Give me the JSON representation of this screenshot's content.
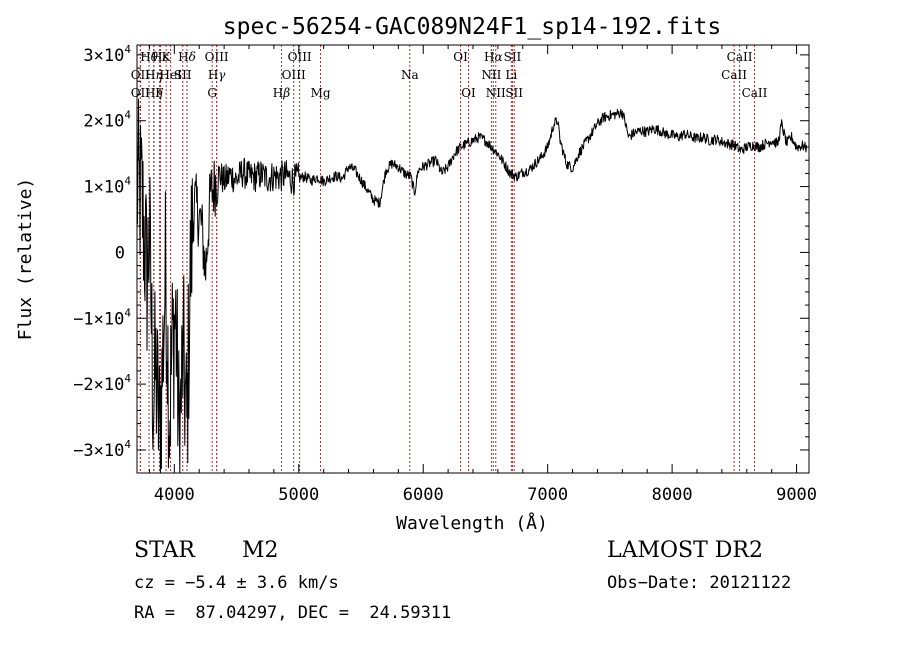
{
  "chart_data": {
    "type": "line",
    "title": "spec-56254-GAC089N24F1_sp14-192.fits",
    "xlabel": "Wavelength (Å)",
    "ylabel": "Flux (relative)",
    "xlim": [
      3700,
      9100
    ],
    "ylim": [
      -33500,
      31500
    ],
    "x_ticks": [
      4000,
      5000,
      6000,
      7000,
      8000,
      9000
    ],
    "x_tick_labels": [
      "4000",
      "5000",
      "6000",
      "7000",
      "8000",
      "9000"
    ],
    "y_ticks": [
      {
        "value": 30000,
        "mantissa": "3",
        "exp": "4"
      },
      {
        "value": 20000,
        "mantissa": "2",
        "exp": "4"
      },
      {
        "value": 10000,
        "mantissa": "1",
        "exp": "4"
      },
      {
        "value": 0,
        "mantissa": "0",
        "exp": ""
      },
      {
        "value": -10000,
        "mantissa": "−1",
        "exp": "4"
      },
      {
        "value": -20000,
        "mantissa": "−2",
        "exp": "4"
      },
      {
        "value": -30000,
        "mantissa": "−3",
        "exp": "4"
      }
    ],
    "line_color": "#000000",
    "line_markers_color": "#b03030",
    "spectrum_anchors": [
      [
        3700,
        10000
      ],
      [
        3740,
        8000
      ],
      [
        3780,
        -4000
      ],
      [
        3800,
        3000
      ],
      [
        3830,
        -22000
      ],
      [
        3850,
        -18000
      ],
      [
        3880,
        -27000
      ],
      [
        3900,
        -20000
      ],
      [
        3930,
        -2000
      ],
      [
        3960,
        -25000
      ],
      [
        3985,
        -14000
      ],
      [
        4010,
        -9000
      ],
      [
        4040,
        -29000
      ],
      [
        4070,
        -15000
      ],
      [
        4100,
        -27000
      ],
      [
        4130,
        -2000
      ],
      [
        4160,
        8000
      ],
      [
        4190,
        6000
      ],
      [
        4220,
        4000
      ],
      [
        4250,
        -3000
      ],
      [
        4290,
        9000
      ],
      [
        4320,
        10000
      ],
      [
        4360,
        12000
      ],
      [
        4400,
        10800
      ],
      [
        4450,
        11800
      ],
      [
        4500,
        11000
      ],
      [
        4550,
        12200
      ],
      [
        4600,
        11500
      ],
      [
        4650,
        11500
      ],
      [
        4700,
        11800
      ],
      [
        4750,
        11300
      ],
      [
        4800,
        11600
      ],
      [
        4850,
        11500
      ],
      [
        4900,
        11700
      ],
      [
        4950,
        11000
      ],
      [
        5000,
        11300
      ],
      [
        5050,
        11500
      ],
      [
        5100,
        10900
      ],
      [
        5150,
        11400
      ],
      [
        5200,
        10800
      ],
      [
        5250,
        11300
      ],
      [
        5300,
        11600
      ],
      [
        5350,
        11200
      ],
      [
        5400,
        13000
      ],
      [
        5450,
        12500
      ],
      [
        5500,
        11000
      ],
      [
        5550,
        9500
      ],
      [
        5600,
        8000
      ],
      [
        5650,
        7500
      ],
      [
        5700,
        12500
      ],
      [
        5750,
        13500
      ],
      [
        5800,
        13000
      ],
      [
        5850,
        12000
      ],
      [
        5900,
        11500
      ],
      [
        5930,
        9000
      ],
      [
        5960,
        12500
      ],
      [
        6000,
        13000
      ],
      [
        6050,
        13500
      ],
      [
        6100,
        14000
      ],
      [
        6150,
        12000
      ],
      [
        6200,
        13000
      ],
      [
        6250,
        15000
      ],
      [
        6300,
        16000
      ],
      [
        6350,
        16500
      ],
      [
        6400,
        17000
      ],
      [
        6450,
        17500
      ],
      [
        6500,
        17000
      ],
      [
        6550,
        16000
      ],
      [
        6600,
        15000
      ],
      [
        6650,
        13500
      ],
      [
        6700,
        12000
      ],
      [
        6750,
        11500
      ],
      [
        6800,
        12200
      ],
      [
        6850,
        12500
      ],
      [
        6900,
        13500
      ],
      [
        6950,
        14500
      ],
      [
        7000,
        16000
      ],
      [
        7050,
        19500
      ],
      [
        7080,
        20000
      ],
      [
        7100,
        17000
      ],
      [
        7150,
        13500
      ],
      [
        7200,
        12800
      ],
      [
        7250,
        15000
      ],
      [
        7300,
        16500
      ],
      [
        7350,
        18000
      ],
      [
        7400,
        19500
      ],
      [
        7450,
        20500
      ],
      [
        7500,
        20800
      ],
      [
        7550,
        21000
      ],
      [
        7600,
        21300
      ],
      [
        7620,
        20000
      ],
      [
        7650,
        17500
      ],
      [
        7700,
        18200
      ],
      [
        7750,
        18500
      ],
      [
        7800,
        18300
      ],
      [
        7850,
        18800
      ],
      [
        7900,
        18500
      ],
      [
        7950,
        18000
      ],
      [
        8000,
        17800
      ],
      [
        8050,
        17500
      ],
      [
        8100,
        18000
      ],
      [
        8150,
        17600
      ],
      [
        8200,
        17300
      ],
      [
        8250,
        17500
      ],
      [
        8300,
        17000
      ],
      [
        8350,
        17200
      ],
      [
        8400,
        16800
      ],
      [
        8450,
        16500
      ],
      [
        8500,
        16300
      ],
      [
        8550,
        15500
      ],
      [
        8600,
        16000
      ],
      [
        8650,
        16300
      ],
      [
        8700,
        16000
      ],
      [
        8750,
        16500
      ],
      [
        8800,
        17000
      ],
      [
        8850,
        16500
      ],
      [
        8880,
        19500
      ],
      [
        8920,
        16500
      ],
      [
        8960,
        17500
      ],
      [
        9000,
        16000
      ],
      [
        9050,
        16200
      ],
      [
        9080,
        15800
      ]
    ],
    "lines": [
      {
        "row": 0,
        "x": 3797,
        "label": "H",
        "greek": "θ"
      },
      {
        "row": 0,
        "x": 3889,
        "label": "H",
        "greek": "ε"
      },
      {
        "row": 0,
        "x": 3934,
        "label": "K"
      },
      {
        "row": 0,
        "x": 4102,
        "label": "H",
        "greek": "δ"
      },
      {
        "row": 0,
        "x": 4340,
        "label": "OIII"
      },
      {
        "row": 0,
        "x": 5007,
        "label": "OIII"
      },
      {
        "row": 0,
        "x": 6300,
        "label": "OI"
      },
      {
        "row": 0,
        "x": 6563,
        "label": "H",
        "greek": "α"
      },
      {
        "row": 0,
        "x": 6717,
        "label": "SII"
      },
      {
        "row": 0,
        "x": 8542,
        "label": "CaII"
      },
      {
        "row": 1,
        "x": 3727,
        "label": "OII"
      },
      {
        "row": 1,
        "x": 3835,
        "label": "H",
        "greek": "η"
      },
      {
        "row": 1,
        "x": 3970,
        "label": "HeI"
      },
      {
        "row": 1,
        "x": 4068,
        "label": "SII"
      },
      {
        "row": 1,
        "x": 4340,
        "label": "H",
        "greek": "γ"
      },
      {
        "row": 1,
        "x": 4959,
        "label": "OIII"
      },
      {
        "row": 1,
        "x": 5892,
        "label": "Na"
      },
      {
        "row": 1,
        "x": 6548,
        "label": "NII"
      },
      {
        "row": 1,
        "x": 6708,
        "label": "Li"
      },
      {
        "row": 1,
        "x": 8498,
        "label": "CaII"
      },
      {
        "row": 2,
        "x": 3727,
        "label": "OII"
      },
      {
        "row": 2,
        "x": 3835,
        "label": "H",
        "greek": "η"
      },
      {
        "row": 2,
        "x": 3880,
        "label": "F"
      },
      {
        "row": 2,
        "x": 4304,
        "label": "G"
      },
      {
        "row": 2,
        "x": 4861,
        "label": "H",
        "greek": "β"
      },
      {
        "row": 2,
        "x": 5175,
        "label": "Mg"
      },
      {
        "row": 2,
        "x": 6364,
        "label": "OI"
      },
      {
        "row": 2,
        "x": 6583,
        "label": "NII"
      },
      {
        "row": 2,
        "x": 6731,
        "label": "SII"
      },
      {
        "row": 2,
        "x": 8662,
        "label": "CaII"
      }
    ]
  },
  "info": {
    "object_class": "STAR",
    "subclass": "M2",
    "survey": "LAMOST DR2",
    "cz_line": "cz = −5.4 ± 3.6 km/s",
    "obs_date": "Obs−Date: 20121122",
    "radec_line": "RA =  87.04297, DEC =  24.59311"
  }
}
